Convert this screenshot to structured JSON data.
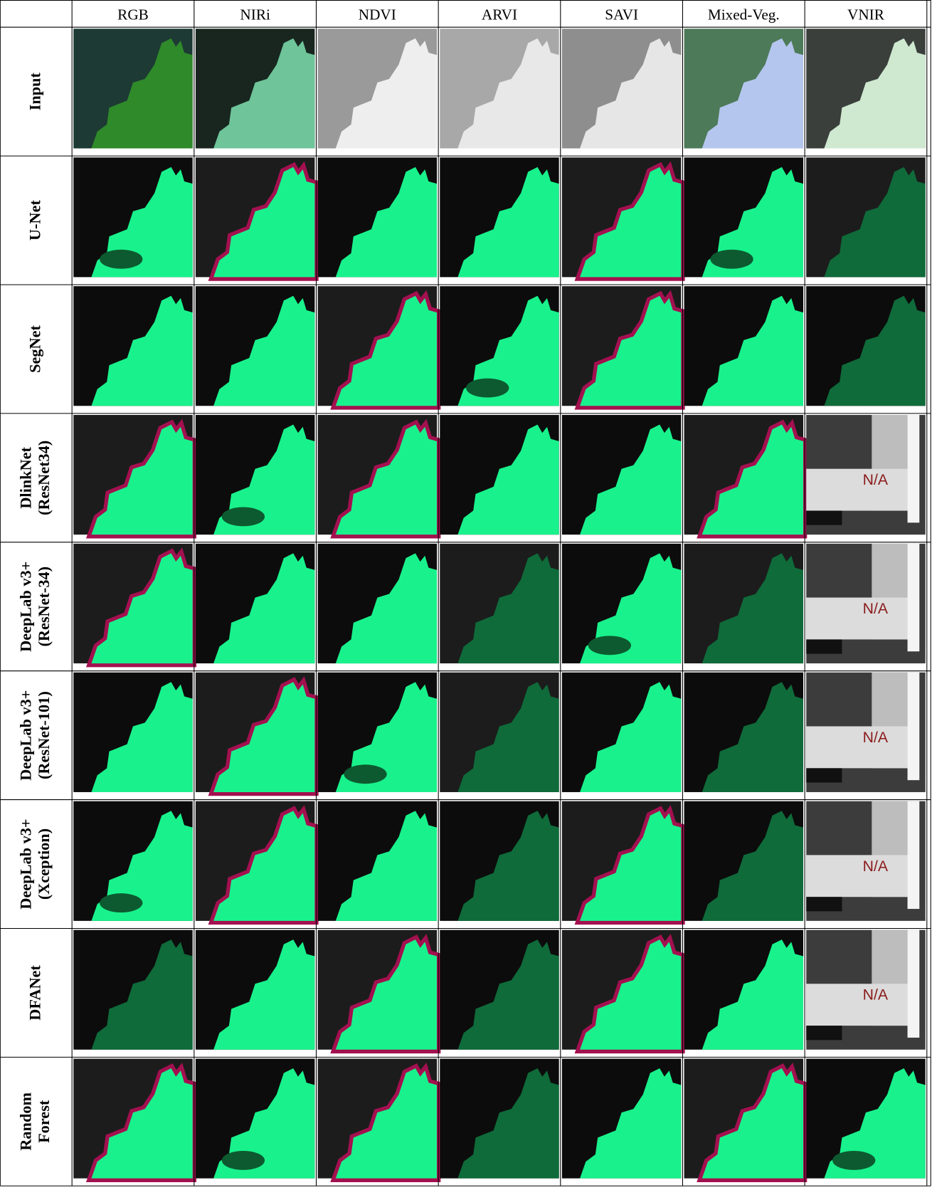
{
  "header": {
    "columns": [
      "RGB",
      "NIRi",
      "NDVI",
      "ARVI",
      "SAVI",
      "Mixed-Veg.",
      "VNIR"
    ]
  },
  "rows": [
    {
      "label": [
        "Input"
      ]
    },
    {
      "label": [
        "U-Net"
      ]
    },
    {
      "label": [
        "SegNet"
      ]
    },
    {
      "label": [
        "DlinkNet",
        "(ResNet34)"
      ],
      "vnir": "N/A"
    },
    {
      "label": [
        "DeepLab v3+",
        "(ResNet-34)"
      ],
      "vnir": "N/A"
    },
    {
      "label": [
        "DeepLab v3+",
        "(ResNet-101)"
      ],
      "vnir": "N/A"
    },
    {
      "label": [
        "DeepLab v3+",
        "(Xception)"
      ],
      "vnir": "N/A"
    },
    {
      "label": [
        "DFANet"
      ],
      "vnir": "N/A"
    },
    {
      "label": [
        "Random",
        "Forest"
      ]
    }
  ]
}
